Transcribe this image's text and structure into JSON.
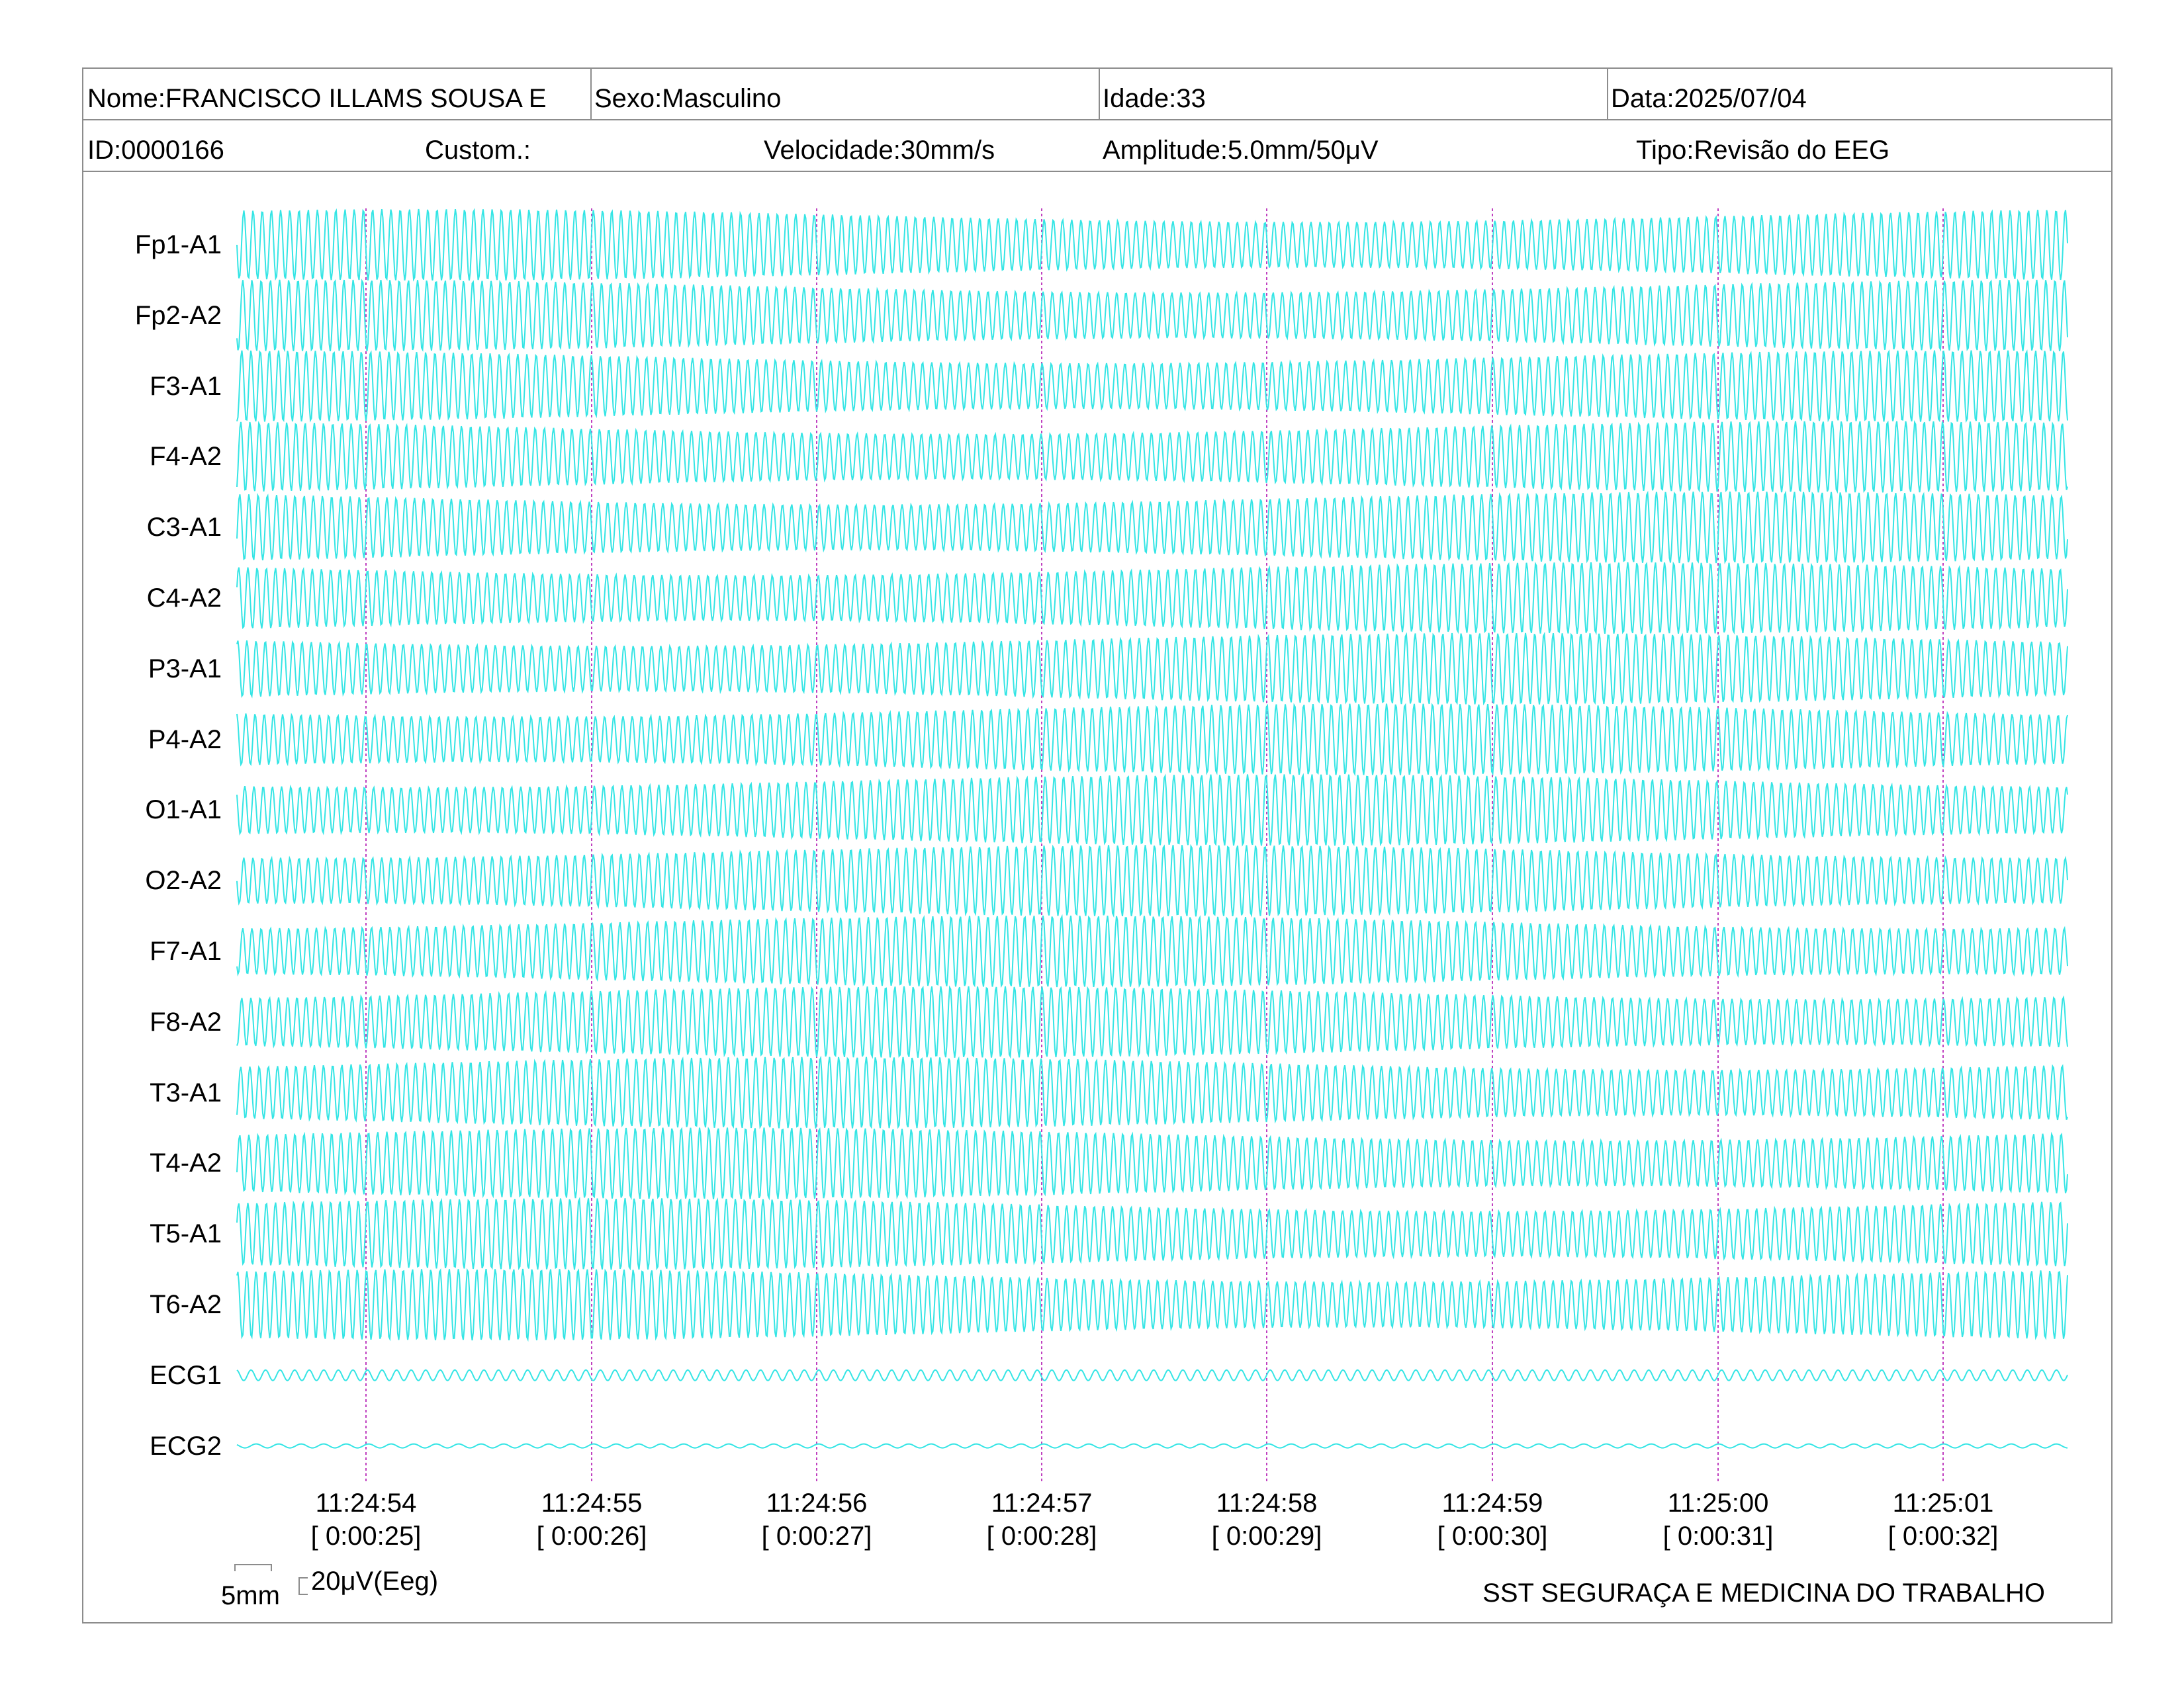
{
  "header": {
    "nome": "Nome:FRANCISCO ILLAMS SOUSA E",
    "sexo": "Sexo:Masculino",
    "idade": "Idade:33",
    "data": "Data:2025/07/04",
    "id": "ID:0000166",
    "custom": "Custom.:",
    "velocidade": "Velocidade:30mm/s",
    "amplitude": "Amplitude:5.0mm/50μV",
    "tipo": "Tipo:Revisão do EEG"
  },
  "colors": {
    "trace": "#35e5e5",
    "marker": "#c040c0",
    "border": "#8c8c8c"
  },
  "scale": {
    "time_label": "5mm",
    "amp_label": "20μV(Eeg)"
  },
  "footer": "SST SEGURAÇA E MEDICINA DO TRABALHO",
  "chart_data": {
    "type": "line",
    "channels": [
      "Fp1-A1",
      "Fp2-A2",
      "F3-A1",
      "F4-A2",
      "C3-A1",
      "C4-A2",
      "P3-A1",
      "P4-A2",
      "O1-A1",
      "O2-A2",
      "F7-A1",
      "F8-A2",
      "T3-A1",
      "T4-A2",
      "T5-A1",
      "T6-A2",
      "ECG1",
      "ECG2"
    ],
    "time_ticks": [
      {
        "clock": "11:24:54",
        "elapsed": "[ 0:00:25]"
      },
      {
        "clock": "11:24:55",
        "elapsed": "[ 0:00:26]"
      },
      {
        "clock": "11:24:56",
        "elapsed": "[ 0:00:27]"
      },
      {
        "clock": "11:24:57",
        "elapsed": "[ 0:00:28]"
      },
      {
        "clock": "11:24:58",
        "elapsed": "[ 0:00:29]"
      },
      {
        "clock": "11:24:59",
        "elapsed": "[ 0:00:30]"
      },
      {
        "clock": "11:25:00",
        "elapsed": "[ 0:00:31]"
      },
      {
        "clock": "11:25:01",
        "elapsed": "[ 0:00:32]"
      }
    ]
  }
}
